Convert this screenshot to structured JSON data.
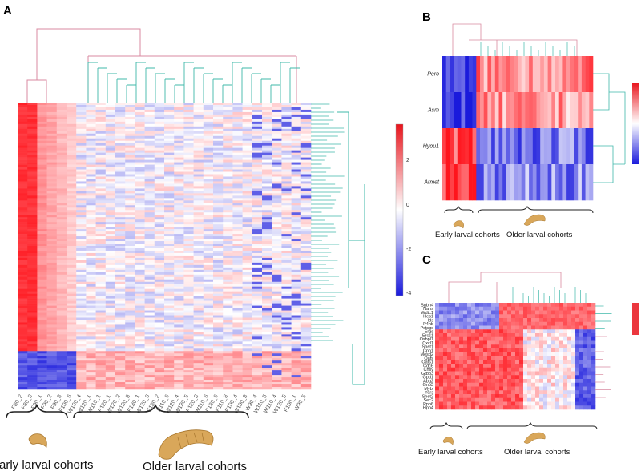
{
  "panels": {
    "a": {
      "letter": "A",
      "sample_labels": [
        "F80_2",
        "F80_3",
        "F90_1",
        "F90_2",
        "F90_3",
        "F100_6",
        "W100_4",
        "W120_1",
        "W110_1",
        "F120_1",
        "W120_2",
        "W130_3",
        "F130_1",
        "W120_6",
        "F130_2",
        "F110_6",
        "W120_4",
        "W130_5",
        "F120_3",
        "W110_6",
        "F130_6",
        "F110_3",
        "F100_4",
        "W100_3",
        "W90_4",
        "W110_5",
        "W110_4",
        "W120_5",
        "F100_1",
        "W90_5"
      ],
      "early_label": "Early larval cohorts",
      "older_label": "Older larval cohorts",
      "colorbar_ticks": [
        "2",
        "0",
        "-2",
        "-4"
      ]
    },
    "b": {
      "letter": "B",
      "genes": [
        "Pero",
        "Asm",
        "Hyou1",
        "Armet"
      ],
      "early_label": "Early larval cohorts",
      "older_label": "Older larval cohorts"
    },
    "c": {
      "letter": "C",
      "genes": [
        "Sgbh4",
        "Nans",
        "Wdtc1",
        "Hes1",
        "Ids",
        "P4hb",
        "Pctsgs",
        "Ergs",
        "Ercs1",
        "Osbpl1",
        "Cxcl1",
        "Shet1",
        "Cpb1",
        "Mesd2",
        "Oafs",
        "Oafs1",
        "Cdc6",
        "Chsy",
        "Gtbp3",
        "Gpd1",
        "Abg2",
        "Gnb3",
        "Mybl",
        "Yars",
        "Shet2",
        "Sec2",
        "Ppp6",
        "Hpp4"
      ],
      "early_label": "Early larval cohorts",
      "older_label": "Older larval cohorts"
    }
  },
  "colors": {
    "high": "#e8141c",
    "mid": "#ffffff",
    "low": "#1a1adc",
    "dendro_teal": "#3fb8aa",
    "dendro_pink": "#d98aa0",
    "larva": "#d9a75a"
  }
}
